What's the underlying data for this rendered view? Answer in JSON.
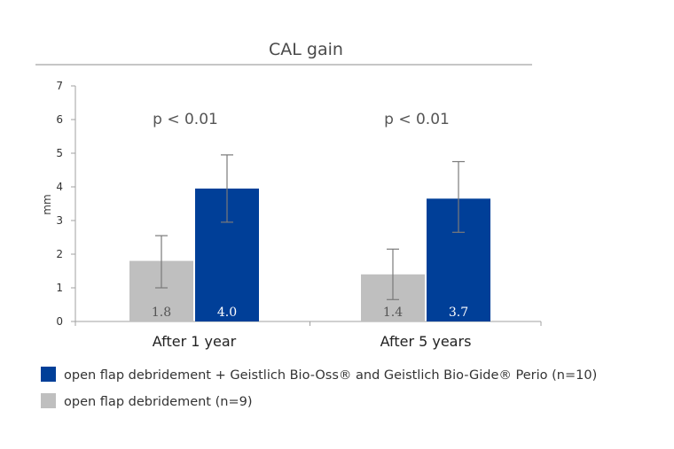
{
  "chart_data": {
    "type": "bar",
    "title": "CAL gain",
    "xlabel": "",
    "ylabel": "mm",
    "ylim": [
      0,
      7
    ],
    "yticks": [
      0,
      1,
      2,
      3,
      4,
      5,
      6,
      7
    ],
    "categories": [
      "After 1 year",
      "After 5 years"
    ],
    "series": [
      {
        "name": "open flap debridement (n=9)",
        "color": "#bfbfbf",
        "values": [
          1.8,
          1.4
        ],
        "data_labels": [
          "1.8",
          "1.4"
        ],
        "error_low": [
          1.0,
          0.65
        ],
        "error_high": [
          2.55,
          2.15
        ]
      },
      {
        "name": "open flap debridement + Geistlich Bio-Oss® and Geistlich Bio-Gide® Perio (n=10)",
        "color": "#003f98",
        "values": [
          3.95,
          3.65
        ],
        "data_labels": [
          "4.0",
          "3.7"
        ],
        "error_low": [
          2.95,
          2.65
        ],
        "error_high": [
          4.95,
          4.75
        ]
      }
    ],
    "annotations": [
      "p < 0.01",
      "p < 0.01"
    ],
    "legend": {
      "placement": "bottom-left",
      "order": [
        1,
        0
      ]
    },
    "grid": false
  }
}
